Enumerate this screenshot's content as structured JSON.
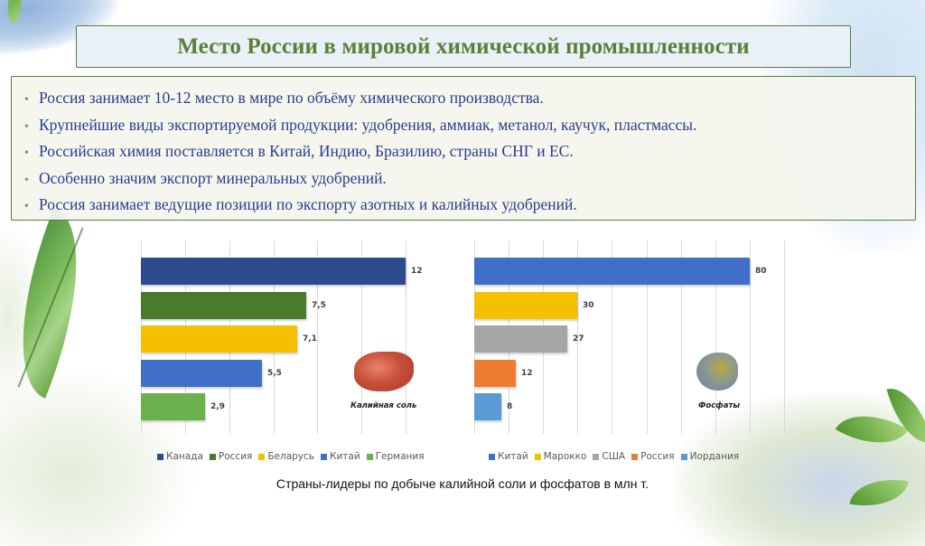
{
  "title": "Место России в мировой химической промышленности",
  "bullets": [
    "Россия занимает 10-12 место в мире по объёму химического производства.",
    "Крупнейшие виды экспортируемой продукции: удобрения, аммиак, метанол, каучук, пластмассы.",
    "Российская химия поставляется в Китай, Индию, Бразилию, страны СНГ и ЕС.",
    "Особенно значим экспорт минеральных удобрений.",
    "Россия занимает ведущие позиции по экспорту азотных и калийных удобрений."
  ],
  "caption": "Страны-лидеры по добыче калийной соли и фосфатов в млн т.",
  "chart_data": [
    {
      "type": "bar",
      "orientation": "horizontal",
      "title": "",
      "mineral_label": "Калийная соль",
      "categories": [
        "Канада",
        "Россия",
        "Беларусь",
        "Китай",
        "Германия"
      ],
      "values": [
        12,
        7.5,
        7.1,
        5.5,
        2.9
      ],
      "value_labels": [
        "12",
        "7,5",
        "7,1",
        "5,5",
        "2,9"
      ],
      "colors": [
        "#2e4a8e",
        "#4a7a2c",
        "#f5c000",
        "#3f6fc8",
        "#6ab04c"
      ],
      "xlim": [
        0,
        12
      ],
      "grid": true,
      "grid_step": 2,
      "legend_position": "bottom",
      "xlabel": "",
      "ylabel": ""
    },
    {
      "type": "bar",
      "orientation": "horizontal",
      "title": "",
      "mineral_label": "Фосфаты",
      "categories": [
        "Китай",
        "Марокко",
        "США",
        "Россия",
        "Иордания"
      ],
      "values": [
        80,
        30,
        27,
        12,
        8
      ],
      "value_labels": [
        "80",
        "30",
        "27",
        "12",
        "8"
      ],
      "colors": [
        "#3f6fc8",
        "#f5c000",
        "#a5a5a5",
        "#ed7d31",
        "#5b9bd5"
      ],
      "xlim": [
        0,
        90
      ],
      "grid": true,
      "grid_step": 10,
      "legend_position": "bottom",
      "xlabel": "",
      "ylabel": ""
    }
  ]
}
